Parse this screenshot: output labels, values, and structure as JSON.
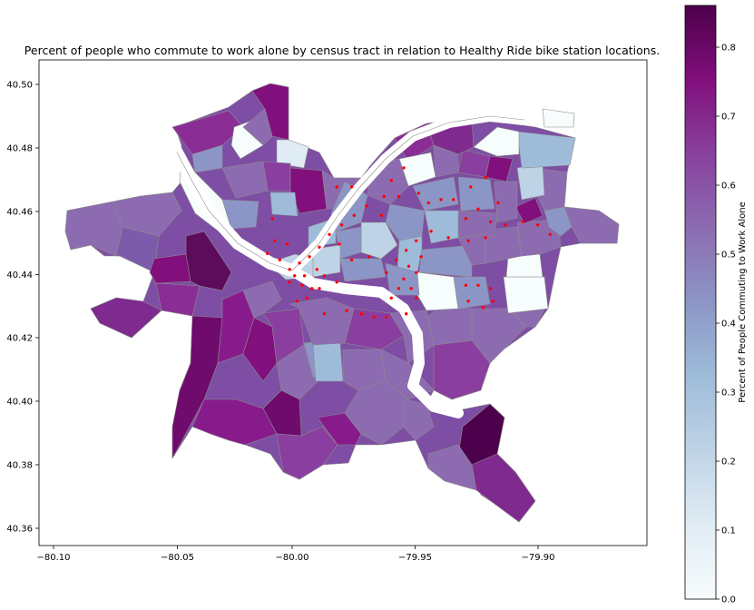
{
  "title": "Percent of people who commute to work alone by census tract in relation to Healthy Ride bike station locations.",
  "x_ticks": [
    "−80.10",
    "−80.05",
    "−80.00",
    "−79.95",
    "−79.90"
  ],
  "y_ticks": [
    "40.50",
    "40.48",
    "40.46",
    "40.44",
    "40.42",
    "40.40",
    "40.38",
    "40.36"
  ],
  "colorbar": {
    "label": "Percent of People Commuting to Work Alone",
    "ticks": [
      "0.0",
      "0.1",
      "0.2",
      "0.3",
      "0.4",
      "0.5",
      "0.6",
      "0.7",
      "0.8"
    ],
    "colormap": "BuPu",
    "range": [
      0.0,
      0.86
    ]
  },
  "colors": {
    "station_marker": "#ff0000",
    "tract_edge": "#8c8c8c",
    "cmap_stops": [
      "#f7fcfd",
      "#e0ecf4",
      "#bfd3e6",
      "#9ebcda",
      "#8c96c6",
      "#8c6bb1",
      "#88419d",
      "#810f7c",
      "#4d004b"
    ]
  },
  "chart_data": {
    "type": "choropleth",
    "xlim": [
      -80.105,
      -79.86
    ],
    "ylim": [
      40.355,
      40.508
    ],
    "stations": [
      [
        -79.958,
        40.474
      ],
      [
        -79.963,
        40.47
      ],
      [
        -79.952,
        40.466
      ],
      [
        -79.966,
        40.465
      ],
      [
        -79.96,
        40.465
      ],
      [
        -79.948,
        40.463
      ],
      [
        -79.943,
        40.464
      ],
      [
        -79.938,
        40.464
      ],
      [
        -79.931,
        40.468
      ],
      [
        -79.925,
        40.471
      ],
      [
        -79.92,
        40.463
      ],
      [
        -79.933,
        40.458
      ],
      [
        -79.928,
        40.461
      ],
      [
        -79.923,
        40.457
      ],
      [
        -79.917,
        40.456
      ],
      [
        -79.91,
        40.457
      ],
      [
        -79.904,
        40.456
      ],
      [
        -79.899,
        40.453
      ],
      [
        -79.925,
        40.452
      ],
      [
        -79.932,
        40.451
      ],
      [
        -79.94,
        40.452
      ],
      [
        -79.947,
        40.454
      ],
      [
        -79.953,
        40.451
      ],
      [
        -79.957,
        40.448
      ],
      [
        -79.951,
        40.446
      ],
      [
        -79.956,
        40.443
      ],
      [
        -79.961,
        40.445
      ],
      [
        -79.965,
        40.441
      ],
      [
        -79.958,
        40.439
      ],
      [
        -79.953,
        40.441
      ],
      [
        -79.955,
        40.436
      ],
      [
        -79.96,
        40.436
      ],
      [
        -79.963,
        40.433
      ],
      [
        -79.953,
        40.433
      ],
      [
        -79.957,
        40.428
      ],
      [
        -79.933,
        40.437
      ],
      [
        -79.928,
        40.437
      ],
      [
        -79.923,
        40.436
      ],
      [
        -79.932,
        40.432
      ],
      [
        -79.926,
        40.43
      ],
      [
        -79.922,
        40.432
      ],
      [
        -79.967,
        40.459
      ],
      [
        -79.973,
        40.462
      ],
      [
        -79.978,
        40.459
      ],
      [
        -79.983,
        40.456
      ],
      [
        -79.988,
        40.453
      ],
      [
        -79.992,
        40.449
      ],
      [
        -79.996,
        40.446
      ],
      [
        -80.0,
        40.444
      ],
      [
        -80.004,
        40.442
      ],
      [
        -80.008,
        40.445
      ],
      [
        -80.01,
        40.451
      ],
      [
        -80.013,
        40.447
      ],
      [
        -80.004,
        40.438
      ],
      [
        -79.999,
        40.437
      ],
      [
        -79.995,
        40.436
      ],
      [
        -79.99,
        40.44
      ],
      [
        -79.985,
        40.438
      ],
      [
        -79.993,
        40.442
      ],
      [
        -79.998,
        40.44
      ],
      [
        -80.002,
        40.44
      ],
      [
        -79.997,
        40.433
      ],
      [
        -80.001,
        40.432
      ],
      [
        -79.99,
        40.428
      ],
      [
        -79.981,
        40.429
      ],
      [
        -79.975,
        40.428
      ],
      [
        -79.97,
        40.427
      ],
      [
        -79.965,
        40.427
      ],
      [
        -79.979,
        40.445
      ],
      [
        -79.972,
        40.446
      ],
      [
        -79.984,
        40.45
      ],
      [
        -80.011,
        40.458
      ],
      [
        -79.985,
        40.468
      ],
      [
        -79.979,
        40.468
      ],
      [
        -79.992,
        40.436
      ],
      [
        -80.005,
        40.45
      ]
    ]
  }
}
